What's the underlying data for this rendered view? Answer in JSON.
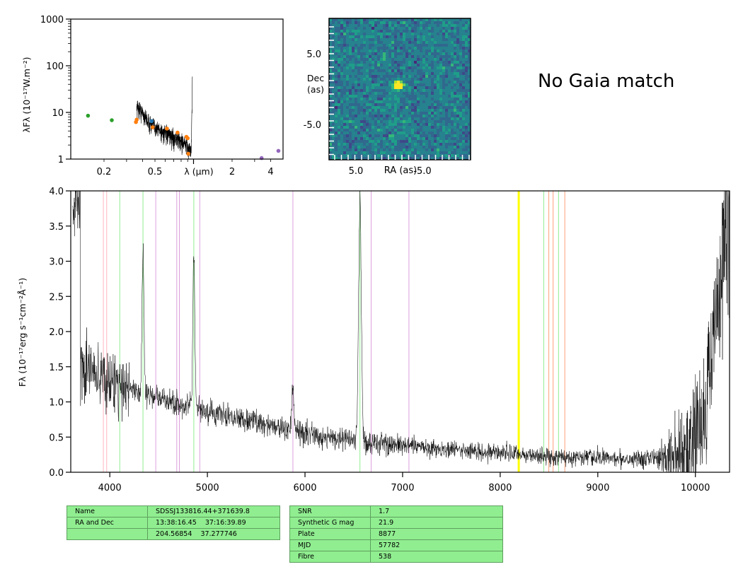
{
  "sed": {
    "ylabel": "λFλ (10⁻¹⁷W.m⁻²)",
    "xlabel": "λ (μm)",
    "yticks": [
      "1",
      "10",
      "100",
      "1000"
    ],
    "xticks": [
      "0.2",
      "0.5",
      "2",
      "4"
    ]
  },
  "cutout": {
    "ylabel_line1": "Dec",
    "ylabel_line2": "(as)",
    "xlabel": "RA (as)",
    "yticks": [
      "5.0",
      "-5.0"
    ],
    "xticks": [
      "5.0",
      "-5.0"
    ]
  },
  "gaia_text": "No Gaia match",
  "spectrum": {
    "ylabel": "Fλ (10⁻¹⁷erg s⁻¹cm⁻²Å⁻¹)",
    "yticks": [
      "0.0",
      "0.5",
      "1.0",
      "1.5",
      "2.0",
      "2.5",
      "3.0",
      "3.5",
      "4.0"
    ],
    "xticks": [
      "4000",
      "5000",
      "6000",
      "7000",
      "8000",
      "9000",
      "10000"
    ]
  },
  "table_left": [
    [
      "Name",
      "SDSSJ133816.44+371639.8"
    ],
    [
      "RA and Dec",
      "13:38:16.45    37:16:39.89"
    ],
    [
      "",
      "204.56854    37.277746"
    ]
  ],
  "table_right": [
    [
      "SNR",
      "1.7"
    ],
    [
      "Synthetic G mag",
      "21.9"
    ],
    [
      "Plate",
      "8877"
    ],
    [
      "MJD",
      "57782"
    ],
    [
      "Fibre",
      "538"
    ]
  ],
  "chart_data": [
    {
      "type": "scatter",
      "panel": "sed",
      "xscale": "log",
      "yscale": "log",
      "xlim": [
        0.11,
        5.0
      ],
      "ylim": [
        1,
        1000
      ],
      "series": [
        {
          "color": "#2ca02c",
          "points": [
            [
              0.15,
              8.5
            ],
            [
              0.23,
              6.8
            ]
          ]
        },
        {
          "color": "#1f77b4",
          "points": [
            [
              0.47,
              6.5
            ]
          ]
        },
        {
          "color": "#ff7f0e",
          "points": [
            [
              0.355,
              6.2
            ],
            [
              0.36,
              7.0
            ],
            [
              0.48,
              4.8
            ],
            [
              0.62,
              4.5
            ],
            [
              0.75,
              3.7
            ],
            [
              0.88,
              3.0
            ],
            [
              0.91,
              1.3
            ],
            [
              0.9,
              2.8
            ]
          ]
        },
        {
          "color": "#9467bd",
          "points": [
            [
              3.4,
              1.05
            ],
            [
              4.6,
              1.5
            ]
          ]
        }
      ],
      "spectrum_segment": {
        "xrange": [
          0.36,
          0.98
        ],
        "baseline": [
          [
            0.36,
            14
          ],
          [
            0.45,
            6
          ],
          [
            0.6,
            3.5
          ],
          [
            0.8,
            2.5
          ],
          [
            0.96,
            1.5
          ],
          [
            0.98,
            60
          ]
        ]
      }
    },
    {
      "type": "heatmap",
      "panel": "cutout",
      "xlim": [
        10,
        -10
      ],
      "ylim": [
        -10,
        10
      ],
      "colormap": "viridis",
      "source": {
        "ra": 0.2,
        "dec": 0.5,
        "peak": "bright"
      }
    },
    {
      "type": "line",
      "panel": "spectrum",
      "xlabel": "",
      "xlim": [
        3600,
        10350
      ],
      "ylim": [
        0,
        4.0
      ],
      "line_color": "#000000",
      "continuum": [
        [
          3700,
          1.5
        ],
        [
          4000,
          1.3
        ],
        [
          4500,
          1.05
        ],
        [
          5000,
          0.85
        ],
        [
          5500,
          0.72
        ],
        [
          6000,
          0.55
        ],
        [
          6500,
          0.45
        ],
        [
          7000,
          0.38
        ],
        [
          7500,
          0.32
        ],
        [
          8000,
          0.28
        ],
        [
          8500,
          0.22
        ],
        [
          9000,
          0.2
        ],
        [
          9500,
          0.2
        ],
        [
          9900,
          0.25
        ],
        [
          10100,
          0.9
        ],
        [
          10350,
          3.8
        ]
      ],
      "emission_lines": [
        {
          "wavelength": 4340,
          "peak": 2.8
        },
        {
          "wavelength": 4861,
          "peak": 3.0
        },
        {
          "wavelength": 5876,
          "peak": 1.4
        },
        {
          "wavelength": 6563,
          "peak": 4.2
        }
      ],
      "marker_lines": [
        {
          "wavelength": 3934,
          "color": "#ffb6c1"
        },
        {
          "wavelength": 3968,
          "color": "#ffb6c1"
        },
        {
          "wavelength": 4102,
          "color": "#90ee90"
        },
        {
          "wavelength": 4340,
          "color": "#90ee90"
        },
        {
          "wavelength": 4471,
          "color": "#dda0dd"
        },
        {
          "wavelength": 4686,
          "color": "#dda0dd"
        },
        {
          "wavelength": 4713,
          "color": "#dda0dd"
        },
        {
          "wavelength": 4861,
          "color": "#90ee90"
        },
        {
          "wavelength": 4922,
          "color": "#dda0dd"
        },
        {
          "wavelength": 5876,
          "color": "#dda0dd"
        },
        {
          "wavelength": 6563,
          "color": "#90ee90"
        },
        {
          "wavelength": 6678,
          "color": "#dda0dd"
        },
        {
          "wavelength": 7065,
          "color": "#dda0dd"
        },
        {
          "wavelength": 8190,
          "color": "#ffff00",
          "width": 3
        },
        {
          "wavelength": 8446,
          "color": "#90ee90"
        },
        {
          "wavelength": 8498,
          "color": "#ffa07a"
        },
        {
          "wavelength": 8542,
          "color": "#ffa07a"
        },
        {
          "wavelength": 8598,
          "color": "#90ee90"
        },
        {
          "wavelength": 8662,
          "color": "#ffa07a"
        }
      ]
    }
  ]
}
